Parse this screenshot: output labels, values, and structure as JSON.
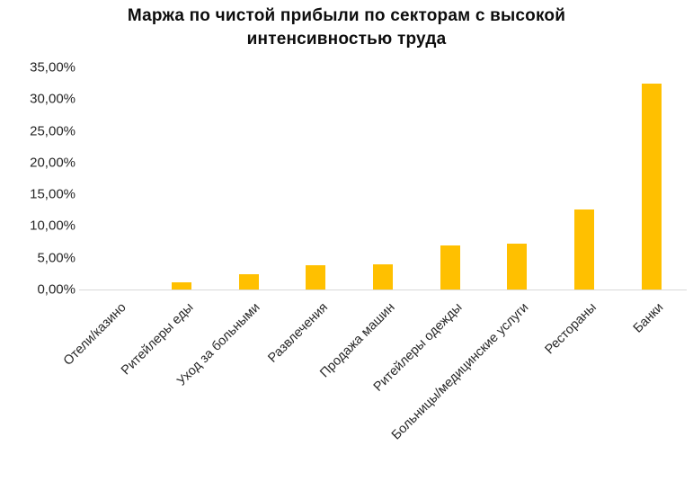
{
  "chart_data": {
    "type": "bar",
    "title": "Маржа по чистой прибыли по секторам с высокой интенсивностью труда",
    "categories": [
      "Отели/казино",
      "Ритейлеры еды",
      "Уход за больными",
      "Развлечения",
      "Продажа машин",
      "Ритейлеры одежды",
      "Больницы/медицинские услуги",
      "Рестораны",
      "Банки"
    ],
    "values": [
      0.0,
      1.2,
      2.4,
      3.8,
      3.9,
      7.0,
      7.2,
      12.6,
      32.5
    ],
    "xlabel": "",
    "ylabel": "",
    "ylim": [
      0,
      35
    ],
    "y_tick_step": 5,
    "y_tick_labels": [
      "0,00%",
      "5,00%",
      "10,00%",
      "15,00%",
      "20,00%",
      "25,00%",
      "30,00%",
      "35,00%"
    ],
    "bar_color": "#FFC000",
    "axis_line_color": "#d9d9d9",
    "grid": false,
    "legend": false
  }
}
